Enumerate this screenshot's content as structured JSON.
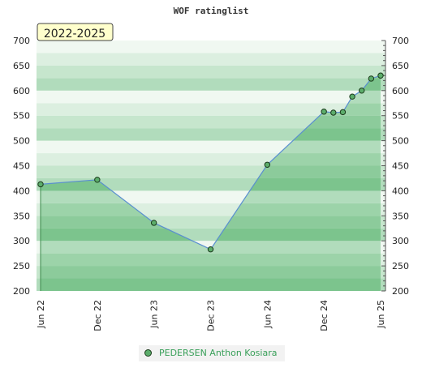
{
  "chart_data": {
    "type": "area",
    "title": "WOF ratinglist",
    "period_label": "2022-2025",
    "xlabel": "",
    "ylabel": "",
    "ylim": [
      200,
      700
    ],
    "yticks": [
      200,
      250,
      300,
      350,
      400,
      450,
      500,
      550,
      600,
      650,
      700
    ],
    "xticks": [
      "Jun 22",
      "Dec 22",
      "Jun 23",
      "Dec 23",
      "Jun 24",
      "Dec 24",
      "Jun 25"
    ],
    "grid": true,
    "legend_position": "bottom",
    "series": [
      {
        "name": "PEDERSEN Anthon Kosiara",
        "color": "#5cad6b",
        "points": [
          {
            "x": "2022-06",
            "y": 413
          },
          {
            "x": "2022-12",
            "y": 422
          },
          {
            "x": "2023-06",
            "y": 336
          },
          {
            "x": "2023-12",
            "y": 283
          },
          {
            "x": "2024-06",
            "y": 452
          },
          {
            "x": "2024-12",
            "y": 558
          },
          {
            "x": "2025-01",
            "y": 556
          },
          {
            "x": "2025-02",
            "y": 557
          },
          {
            "x": "2025-03",
            "y": 588
          },
          {
            "x": "2025-04",
            "y": 600
          },
          {
            "x": "2025-05",
            "y": 624
          },
          {
            "x": "2025-06",
            "y": 630
          }
        ]
      }
    ]
  }
}
